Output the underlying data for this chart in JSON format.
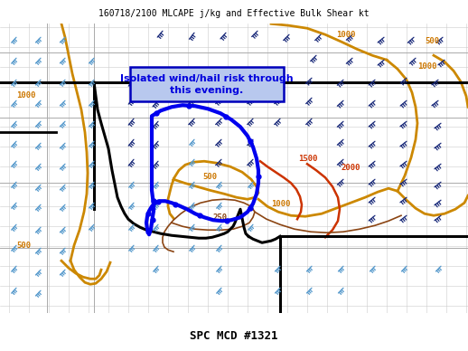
{
  "title_top": "160718/2100 MLCAPE j/kg and Effective Bulk Shear kt",
  "title_bottom": "SPC MCD #1321",
  "annotation_text": "Isolated wind/hail risk through\nthis evening.",
  "bg_color": "#ffffff",
  "title_color": "#000000",
  "annotation_color": "#0000dd",
  "annotation_bg": "#b8c8ee",
  "annotation_border": "#0000bb",
  "state_line_color": "#aaaaaa",
  "county_line_color": "#cccccc",
  "thick_border_color": "#000000",
  "orange_color": "#cc8800",
  "dark_orange": "#cc7700",
  "red_color": "#cc3300",
  "brown_color": "#8B4513",
  "dark_blue": "#1a2a7a",
  "light_blue": "#5599cc",
  "mcd_blue": "#0000ee",
  "figsize": [
    5.18,
    3.88
  ],
  "dpi": 100
}
